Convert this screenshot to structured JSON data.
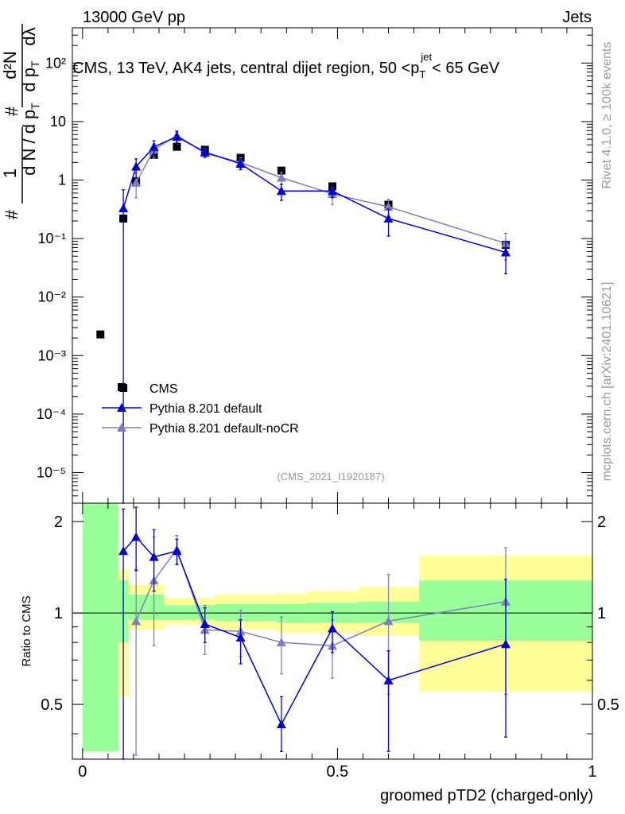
{
  "header": {
    "left": "13000 GeV pp",
    "right": "Jets",
    "side_right": "Rivet 4.1.0, ≥ 100k events",
    "side_right_lower": "mcplots.cern.ch [arXiv:2401.10621]",
    "analysis_id": "(CMS_2021_I1920187)"
  },
  "chart_data": [
    {
      "type": "scatter",
      "title": "CMS, 13 TeV, AK4 jets, central dijet region, 50 <p_T^{jet}< 65 GeV",
      "title_parts": [
        "CMS, 13 TeV, AK4 jets, central dijet region, 50 <p",
        "T",
        "jet",
        "< 65 GeV"
      ],
      "ylabel_parts": [
        "1",
        "d N / d p",
        "T",
        "#",
        "d²N",
        "d p",
        "T",
        "dλ",
        "#"
      ],
      "yscale": "log",
      "ylim": [
        3e-06,
        400
      ],
      "xlim": [
        -0.02,
        1.0
      ],
      "ytick_labels": [
        "10⁻⁵",
        "10⁻⁴",
        "10⁻³",
        "10⁻²",
        "10⁻¹",
        "1",
        "10",
        "10²"
      ],
      "legend_position": "lower-left",
      "series": [
        {
          "name": "CMS",
          "marker": "square",
          "color": "#000000",
          "x": [
            0.035,
            0.08,
            0.08,
            0.105,
            0.14,
            0.185,
            0.24,
            0.31,
            0.39,
            0.49,
            0.6,
            0.83
          ],
          "y": [
            0.0023,
            0.00028,
            0.22,
            0.95,
            2.7,
            3.7,
            3.3,
            2.4,
            1.45,
            0.78,
            0.38,
            0.078
          ]
        },
        {
          "name": "Pythia 8.201 default",
          "marker": "triangle",
          "color": "#0000dd",
          "x": [
            0.08,
            0.105,
            0.14,
            0.185,
            0.24,
            0.31,
            0.39,
            0.49,
            0.6,
            0.83
          ],
          "y": [
            0.33,
            1.7,
            3.7,
            5.5,
            3.0,
            1.9,
            0.65,
            0.65,
            0.22,
            0.058
          ],
          "err_up": [
            0.35,
            0.6,
            1.0,
            1.2,
            0.5,
            0.4,
            0.2,
            0.15,
            0.1,
            0.03
          ],
          "err_down": [
            0.33,
            0.6,
            1.0,
            1.2,
            0.5,
            0.4,
            0.2,
            0.15,
            0.11,
            0.033
          ]
        },
        {
          "name": "Pythia 8.201 default-noCR",
          "marker": "triangle",
          "color": "#7f7fbf",
          "x": [
            0.105,
            0.14,
            0.185,
            0.24,
            0.31,
            0.39,
            0.49,
            0.6,
            0.83
          ],
          "y": [
            0.9,
            3.3,
            5.8,
            2.9,
            2.0,
            1.1,
            0.58,
            0.35,
            0.083
          ],
          "err_up": [
            0.4,
            0.9,
            1.2,
            0.5,
            0.4,
            0.25,
            0.15,
            0.12,
            0.04
          ],
          "err_down": [
            0.4,
            0.9,
            1.2,
            0.5,
            0.4,
            0.25,
            0.2,
            0.12,
            0.04
          ]
        }
      ]
    },
    {
      "type": "scatter",
      "ylabel": "Ratio to CMS",
      "xlabel": "groomed pTD2 (charged-only)",
      "ylim": [
        0.33,
        2.3
      ],
      "xlim": [
        -0.02,
        1.0
      ],
      "ytick_labels": [
        "0.5",
        "1",
        "2"
      ],
      "xtick_labels": [
        "0",
        "0.5",
        "1"
      ],
      "reference_line": 1,
      "bands": {
        "edges": [
          0.0,
          0.07,
          0.09,
          0.16,
          0.26,
          0.38,
          0.44,
          0.54,
          0.66,
          1.0
        ],
        "inner": [
          [
            0.35,
            2.3
          ],
          [
            0.8,
            1.28
          ],
          [
            0.95,
            1.15
          ],
          [
            0.95,
            1.06
          ],
          [
            0.94,
            1.07
          ],
          [
            0.93,
            1.07
          ],
          [
            0.93,
            1.08
          ],
          [
            0.93,
            1.09
          ],
          [
            0.81,
            1.28
          ]
        ],
        "outer": [
          [
            0.35,
            2.3
          ],
          [
            0.53,
            1.4
          ],
          [
            0.88,
            1.24
          ],
          [
            0.92,
            1.12
          ],
          [
            0.88,
            1.15
          ],
          [
            0.86,
            1.16
          ],
          [
            0.86,
            1.18
          ],
          [
            0.84,
            1.22
          ],
          [
            0.55,
            1.55
          ]
        ]
      },
      "series": [
        {
          "name": "Pythia 8.201 default",
          "marker": "triangle",
          "color": "#0000dd",
          "x": [
            0.08,
            0.105,
            0.14,
            0.185,
            0.24,
            0.31,
            0.39,
            0.49,
            0.6,
            0.83
          ],
          "y": [
            1.6,
            1.78,
            1.53,
            1.6,
            0.92,
            0.83,
            0.43,
            0.89,
            0.6,
            0.79
          ],
          "err_up": [
            0.6,
            0.45,
            0.35,
            0.15,
            0.12,
            0.12,
            0.1,
            0.12,
            0.15,
            0.5
          ],
          "err_down": [
            1.5,
            0.4,
            0.35,
            0.15,
            0.12,
            0.15,
            0.08,
            0.15,
            0.25,
            0.4
          ]
        },
        {
          "name": "Pythia 8.201 default-noCR",
          "marker": "triangle",
          "color": "#7f7fbf",
          "x": [
            0.105,
            0.14,
            0.185,
            0.24,
            0.31,
            0.39,
            0.49,
            0.6,
            0.83
          ],
          "y": [
            0.94,
            1.28,
            1.62,
            0.88,
            0.87,
            0.8,
            0.78,
            0.94,
            1.09
          ],
          "err_up": [
            0.45,
            0.5,
            0.18,
            0.18,
            0.15,
            0.17,
            0.17,
            0.4,
            0.55
          ],
          "err_down": [
            0.6,
            0.5,
            0.18,
            0.15,
            0.15,
            0.17,
            0.17,
            0.4,
            0.55
          ]
        }
      ]
    }
  ]
}
